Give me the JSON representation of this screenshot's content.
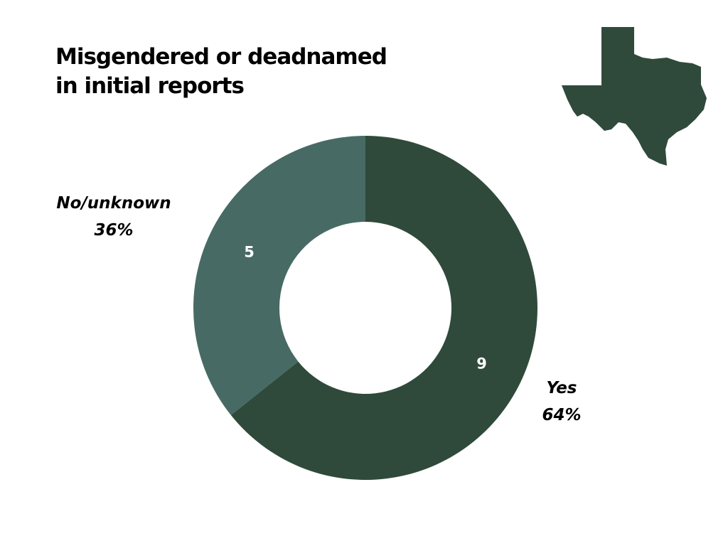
{
  "title_lines": [
    "Misgendered or deadnamed",
    "in initial reports"
  ],
  "map_icon": "texas-state-map",
  "chart_data": {
    "type": "pie",
    "variant": "donut",
    "title": "Misgendered or deadnamed in initial reports",
    "slices": [
      {
        "label": "Yes",
        "value": 9,
        "percent": "64%",
        "color": "#2f4a3b"
      },
      {
        "label": "No/unknown",
        "value": 5,
        "percent": "36%",
        "color": "#476a64"
      }
    ],
    "start": "12 o'clock",
    "direction": "clockwise",
    "legend": "none",
    "callout_positions": {
      "Yes": "bottom-right",
      "No/unknown": "left"
    }
  },
  "colors": {
    "dark_green": "#2f4a3b",
    "teal_green": "#476a64",
    "background": "#ffffff",
    "text": "#000000"
  }
}
